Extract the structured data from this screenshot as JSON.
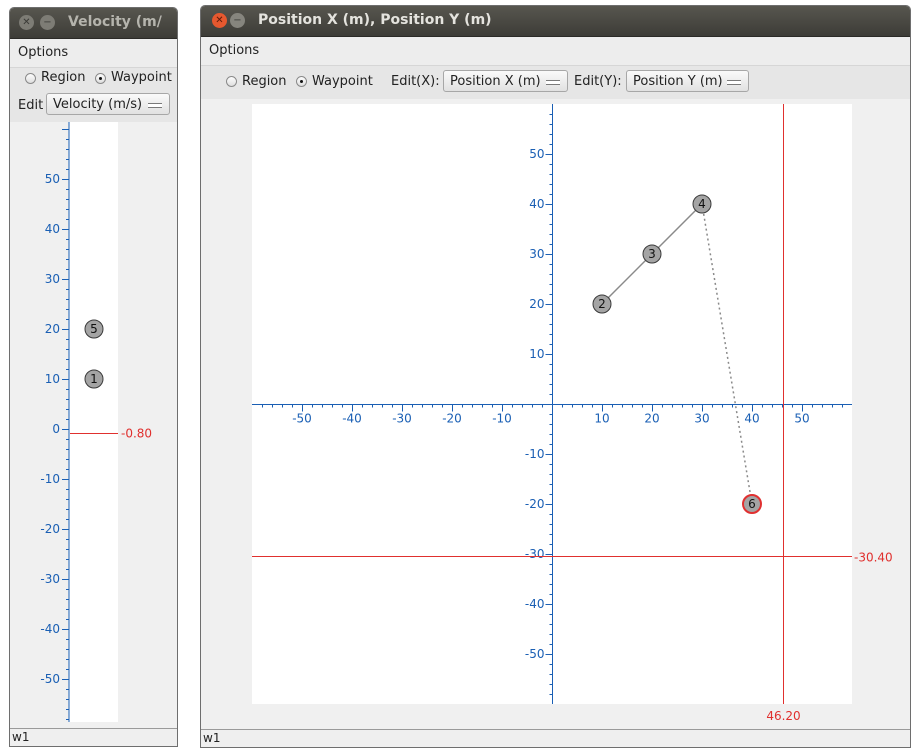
{
  "velocity_window": {
    "title": "Velocity (m/",
    "menu": "Options",
    "radio_region": "Region",
    "radio_waypoint": "Waypoint",
    "edit_label": "Edit",
    "edit_value": "Velocity (m/s)",
    "status": "w1"
  },
  "position_window": {
    "title": "Position X (m), Position Y (m)",
    "menu": "Options",
    "radio_region": "Region",
    "radio_waypoint": "Waypoint",
    "edit_x_label": "Edit(X):",
    "edit_x_value": "Position X (m)",
    "edit_y_label": "Edit(Y):",
    "edit_y_value": "Position Y (m)",
    "status": "w1"
  },
  "chart_data": [
    {
      "type": "scatter",
      "ylim": [
        -60,
        60
      ],
      "y_ticks": [
        50,
        40,
        30,
        20,
        10,
        0,
        -10,
        -20,
        -30,
        -40,
        -50
      ],
      "points": [
        {
          "label": "5",
          "y": 20
        },
        {
          "label": "1",
          "y": 10
        }
      ],
      "cursor": {
        "y": -0.8,
        "label": "-0.80"
      }
    },
    {
      "type": "scatter",
      "xlim": [
        -60,
        60
      ],
      "ylim": [
        -60,
        60
      ],
      "x_ticks": [
        -50,
        -40,
        -30,
        -20,
        -10,
        10,
        20,
        30,
        40,
        50
      ],
      "y_ticks": [
        50,
        40,
        30,
        20,
        10,
        -10,
        -20,
        -30,
        -40,
        -50
      ],
      "points": [
        {
          "label": "2",
          "x": 10,
          "y": 20
        },
        {
          "label": "3",
          "x": 20,
          "y": 30
        },
        {
          "label": "4",
          "x": 30,
          "y": 40
        },
        {
          "label": "6",
          "x": 40,
          "y": -20,
          "selected": true
        }
      ],
      "path": [
        "2",
        "3",
        "4"
      ],
      "dashed_path": [
        "4",
        "6"
      ],
      "cursor": {
        "x": 46.2,
        "y": -30.4,
        "x_label": "46.20",
        "y_label": "-30.40"
      }
    }
  ],
  "colors": {
    "axis": "#1a5fb4",
    "cursor": "#e0302e",
    "point_fill": "#a4a4a4",
    "selected_ring": "#e03030"
  }
}
